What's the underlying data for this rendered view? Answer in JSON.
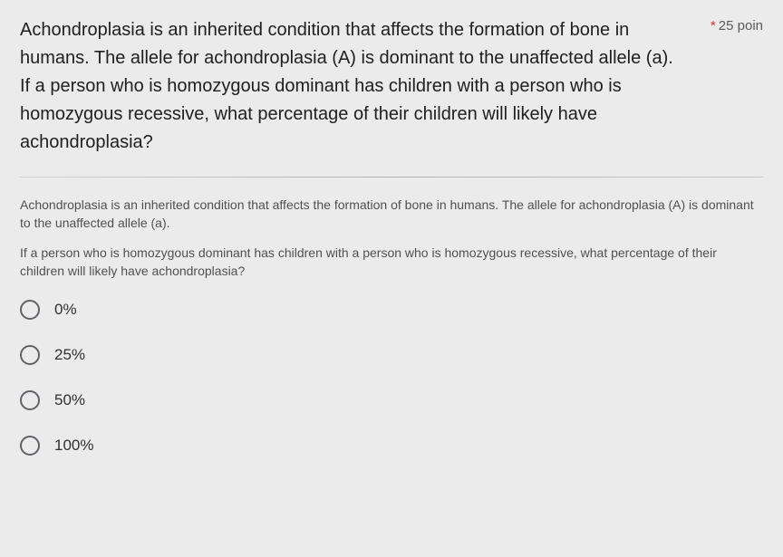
{
  "question": {
    "title": "Achondroplasia is an inherited condition that affects the formation of bone in humans. The allele for achondroplasia (A) is dominant to the unaffected allele (a).\nIf a person who is homozygous dominant has children with a person who is homozygous recessive, what percentage of their children will likely have achondroplasia?",
    "required_marker": "*",
    "points_label": "25 poin",
    "sub_paragraph_1": "Achondroplasia is an inherited condition that affects the formation of bone in humans. The allele for achondroplasia (A) is dominant to the unaffected allele (a).",
    "sub_paragraph_2": "If a person who is homozygous dominant has children with a person who is homozygous recessive, what percentage of their children will likely have achondroplasia?",
    "options": [
      {
        "label": "0%"
      },
      {
        "label": "25%"
      },
      {
        "label": "50%"
      },
      {
        "label": "100%"
      }
    ]
  },
  "styling": {
    "background_color": "#e8e8e8",
    "card_background": "#ebebeb",
    "title_color": "#202020",
    "title_fontsize": 20,
    "points_color": "#5a5a5a",
    "points_fontsize": 15,
    "required_color": "#d93025",
    "subtext_color": "#505050",
    "subtext_fontsize": 14,
    "option_label_color": "#303030",
    "option_label_fontsize": 17,
    "radio_border_color": "#5f6368",
    "radio_size": 22,
    "divider_color": "#bdbdbd"
  }
}
